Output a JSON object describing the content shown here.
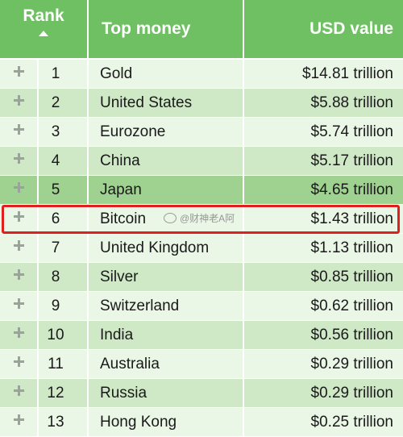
{
  "header": {
    "rank": "Rank",
    "name": "Top money",
    "value": "USD value"
  },
  "rows": [
    {
      "rank": "1",
      "name": "Gold",
      "value": "$14.81 trillion"
    },
    {
      "rank": "2",
      "name": "United States",
      "value": "$5.88 trillion"
    },
    {
      "rank": "3",
      "name": "Eurozone",
      "value": "$5.74 trillion"
    },
    {
      "rank": "4",
      "name": "China",
      "value": "$5.17 trillion"
    },
    {
      "rank": "5",
      "name": "Japan",
      "value": "$4.65 trillion"
    },
    {
      "rank": "6",
      "name": "Bitcoin",
      "value": "$1.43 trillion"
    },
    {
      "rank": "7",
      "name": "United Kingdom",
      "value": "$1.13 trillion"
    },
    {
      "rank": "8",
      "name": "Silver",
      "value": "$0.85 trillion"
    },
    {
      "rank": "9",
      "name": "Switzerland",
      "value": "$0.62 trillion"
    },
    {
      "rank": "10",
      "name": "India",
      "value": "$0.56 trillion"
    },
    {
      "rank": "11",
      "name": "Australia",
      "value": "$0.29 trillion"
    },
    {
      "rank": "12",
      "name": "Russia",
      "value": "$0.29 trillion"
    },
    {
      "rank": "13",
      "name": "Hong Kong",
      "value": "$0.25 trillion"
    }
  ],
  "watermark": "@财神老A阿",
  "colors": {
    "header": "#6fbf63",
    "highlight": "#e02020"
  },
  "icons": {
    "sort": "sort-ascending-icon",
    "expand": "expand-plus-icon"
  }
}
